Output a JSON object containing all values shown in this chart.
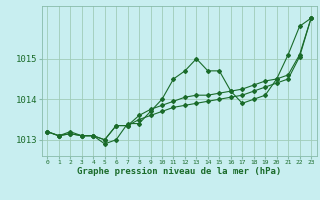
{
  "title": "Graphe pression niveau de la mer (hPa)",
  "background_color": "#c8eef0",
  "grid_color": "#a0ccb8",
  "line_color": "#1a6b2a",
  "marker_color": "#1a6b2a",
  "xlim": [
    -0.5,
    23.5
  ],
  "ylim": [
    1012.6,
    1016.3
  ],
  "yticks": [
    1013,
    1014,
    1015
  ],
  "xticks": [
    0,
    1,
    2,
    3,
    4,
    5,
    6,
    7,
    8,
    9,
    10,
    11,
    12,
    13,
    14,
    15,
    16,
    17,
    18,
    19,
    20,
    21,
    22,
    23
  ],
  "series": [
    [
      1013.2,
      1013.1,
      1013.2,
      1013.1,
      1013.1,
      1012.9,
      1013.0,
      1013.4,
      1013.4,
      1013.7,
      1014.0,
      1014.5,
      1014.7,
      1015.0,
      1014.7,
      1014.7,
      1014.2,
      1013.9,
      1014.0,
      1014.1,
      1014.5,
      1015.1,
      1015.8,
      1016.0
    ],
    [
      1013.2,
      1013.1,
      1013.15,
      1013.1,
      1013.1,
      1013.0,
      1013.35,
      1013.35,
      1013.6,
      1013.75,
      1013.85,
      1013.95,
      1014.05,
      1014.1,
      1014.1,
      1014.15,
      1014.2,
      1014.25,
      1014.35,
      1014.45,
      1014.5,
      1014.6,
      1015.1,
      1016.0
    ],
    [
      1013.2,
      1013.1,
      1013.15,
      1013.1,
      1013.1,
      1013.0,
      1013.35,
      1013.35,
      1013.5,
      1013.6,
      1013.7,
      1013.8,
      1013.85,
      1013.9,
      1013.95,
      1014.0,
      1014.05,
      1014.1,
      1014.2,
      1014.3,
      1014.4,
      1014.5,
      1015.05,
      1016.0
    ]
  ],
  "xlabel_fontsize": 6.5,
  "ytick_fontsize": 6.5,
  "xtick_fontsize": 4.5
}
